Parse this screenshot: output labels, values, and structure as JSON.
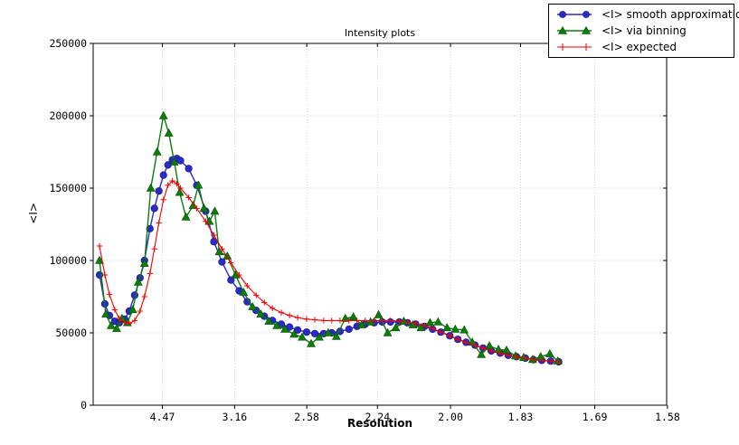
{
  "title": "Intensity plots",
  "xlabel": "Resolution",
  "ylabel": "<I>",
  "chart_data": {
    "type": "line",
    "title": "Intensity plots",
    "xlabel": "Resolution",
    "ylabel": "<I>",
    "grid": true,
    "legend_position": "top-right",
    "x_axis": {
      "note": "resolution d in angstrom, axis linear in 1/d^2",
      "tick_labels": [
        "4.47",
        "3.16",
        "2.58",
        "2.24",
        "2.00",
        "1.83",
        "1.69",
        "1.58"
      ],
      "domain_inv_d2": [
        0.002,
        0.4
      ]
    },
    "y_axis": {
      "tick_labels": [
        "0",
        "50000",
        "100000",
        "150000",
        "200000",
        "250000"
      ],
      "tick_values": [
        0,
        50000,
        100000,
        150000,
        200000,
        250000
      ],
      "ylim": [
        0,
        250000
      ]
    },
    "series": [
      {
        "name": "<I> smooth approximation",
        "color": "#2a2acc",
        "marker": "circle",
        "x_inv_d2": [
          0.0064,
          0.0101,
          0.0133,
          0.017,
          0.0201,
          0.0239,
          0.027,
          0.0308,
          0.0345,
          0.0376,
          0.0414,
          0.0445,
          0.0476,
          0.0508,
          0.0539,
          0.057,
          0.0601,
          0.0626,
          0.0683,
          0.0739,
          0.0801,
          0.0858,
          0.0914,
          0.0976,
          0.1033,
          0.1089,
          0.1151,
          0.1208,
          0.1264,
          0.1326,
          0.1383,
          0.1439,
          0.1501,
          0.1558,
          0.162,
          0.1676,
          0.1733,
          0.1795,
          0.1851,
          0.1908,
          0.197,
          0.2026,
          0.2083,
          0.2145,
          0.2201,
          0.2258,
          0.232,
          0.2376,
          0.2433,
          0.2495,
          0.2551,
          0.2608,
          0.267,
          0.2726,
          0.2783,
          0.2845,
          0.2901,
          0.2958,
          0.302,
          0.3076,
          0.3133,
          0.3195,
          0.3251
        ],
        "y": [
          90000,
          70000,
          62000,
          58000,
          57000,
          59500,
          65000,
          76000,
          88000,
          100000,
          122000,
          136000,
          148000,
          159000,
          166000,
          169500,
          170500,
          169000,
          163500,
          152000,
          134000,
          113000,
          99000,
          86500,
          79000,
          71500,
          65500,
          61500,
          58500,
          56000,
          54000,
          52000,
          50500,
          49500,
          49500,
          50000,
          51000,
          52500,
          54500,
          56000,
          57000,
          57500,
          57500,
          57500,
          57000,
          56000,
          54500,
          52500,
          50500,
          48000,
          45500,
          43500,
          41500,
          39500,
          37500,
          36000,
          34500,
          33500,
          32500,
          31500,
          31000,
          30500,
          30000
        ]
      },
      {
        "name": "<I> via binning",
        "color": "#0a7d0a",
        "marker": "triangle",
        "x_inv_d2": [
          0.0064,
          0.0108,
          0.0145,
          0.0183,
          0.022,
          0.0258,
          0.0295,
          0.0333,
          0.0376,
          0.042,
          0.0464,
          0.0508,
          0.0545,
          0.0583,
          0.062,
          0.0664,
          0.0714,
          0.0751,
          0.0789,
          0.0826,
          0.0864,
          0.0895,
          0.0951,
          0.1008,
          0.1064,
          0.1126,
          0.1183,
          0.1239,
          0.1295,
          0.1351,
          0.1414,
          0.147,
          0.1533,
          0.1589,
          0.1651,
          0.1708,
          0.177,
          0.1826,
          0.1883,
          0.1945,
          0.2001,
          0.2064,
          0.212,
          0.2176,
          0.2239,
          0.2295,
          0.2358,
          0.2414,
          0.2476,
          0.2533,
          0.2595,
          0.2651,
          0.2714,
          0.277,
          0.2833,
          0.2889,
          0.2951,
          0.3008,
          0.307,
          0.3126,
          0.3189,
          0.3245
        ],
        "y": [
          100000,
          63000,
          55000,
          53000,
          60000,
          57000,
          66000,
          85000,
          98000,
          150000,
          175000,
          200000,
          188000,
          168000,
          147000,
          130000,
          138000,
          152000,
          136000,
          127000,
          134000,
          106000,
          103000,
          90000,
          78000,
          68000,
          63000,
          58000,
          55000,
          52500,
          49000,
          47000,
          42500,
          47000,
          50000,
          47500,
          60000,
          61000,
          55500,
          57500,
          62500,
          50000,
          53500,
          58000,
          55500,
          53500,
          57000,
          57500,
          53500,
          52500,
          52000,
          43500,
          35000,
          41000,
          38500,
          38000,
          34000,
          33000,
          31500,
          33500,
          35500,
          30500
        ]
      },
      {
        "name": "<I> expected",
        "color": "#ee0000",
        "marker": "plus",
        "x_inv_d2": [
          0.0064,
          0.0101,
          0.0133,
          0.017,
          0.0201,
          0.0239,
          0.027,
          0.0308,
          0.0345,
          0.0376,
          0.0414,
          0.0445,
          0.0476,
          0.0508,
          0.0539,
          0.057,
          0.0601,
          0.0626,
          0.0683,
          0.0739,
          0.0801,
          0.0858,
          0.0914,
          0.0976,
          0.1033,
          0.1089,
          0.1151,
          0.1208,
          0.1264,
          0.1326,
          0.1383,
          0.1439,
          0.1501,
          0.1558,
          0.162,
          0.1676,
          0.1733,
          0.1795,
          0.1851,
          0.1908,
          0.197,
          0.2026,
          0.2083,
          0.2145,
          0.2201,
          0.2258,
          0.232,
          0.2376,
          0.2433,
          0.2495,
          0.2551,
          0.2608,
          0.267,
          0.2726,
          0.2783,
          0.2845,
          0.2901,
          0.2958,
          0.302,
          0.3076,
          0.3133,
          0.3195,
          0.3251
        ],
        "y": [
          110000,
          90000,
          76500,
          66000,
          60000,
          57000,
          56500,
          58500,
          65000,
          75000,
          91000,
          108000,
          126000,
          142000,
          152000,
          155000,
          153000,
          150000,
          143500,
          136000,
          127000,
          117500,
          108000,
          98500,
          90000,
          82500,
          76000,
          71000,
          67000,
          64000,
          62000,
          60500,
          59500,
          59000,
          58500,
          58500,
          58500,
          58500,
          58500,
          58500,
          58500,
          58500,
          58500,
          58000,
          57500,
          56500,
          55000,
          53000,
          50500,
          48000,
          45500,
          43500,
          41500,
          39500,
          37500,
          36000,
          34500,
          33500,
          32500,
          31500,
          31000,
          30500,
          30000
        ]
      }
    ],
    "colors": {
      "grid": "#c8c8c8",
      "axis": "#000000",
      "background": "#ffffff"
    }
  }
}
